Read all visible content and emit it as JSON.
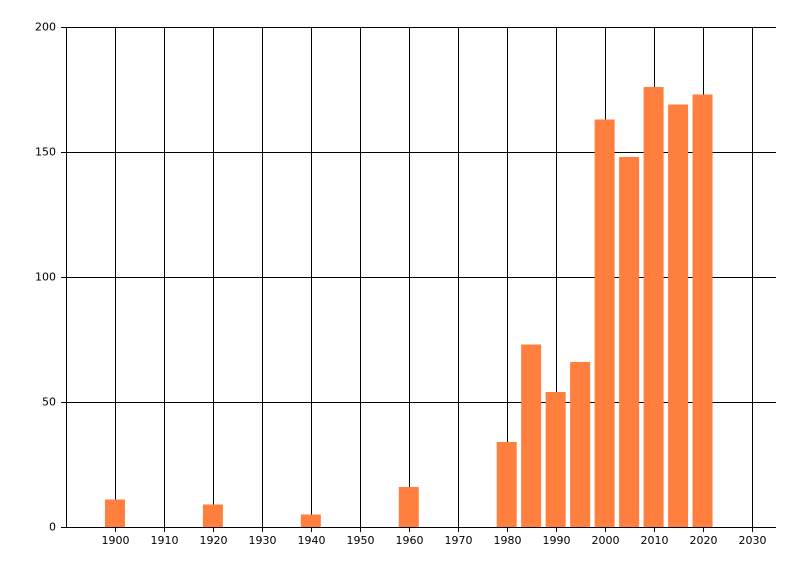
{
  "chart_data": {
    "type": "bar",
    "x": [
      1900,
      1920,
      1940,
      1960,
      1980,
      1985,
      1990,
      1995,
      2000,
      2005,
      2010,
      2015,
      2020
    ],
    "values": [
      11,
      9,
      5,
      16,
      34,
      73,
      54,
      66,
      163,
      148,
      176,
      169,
      173
    ],
    "color": "#ff7f3f",
    "xlim": [
      1890,
      2035
    ],
    "xticks": [
      1900,
      1910,
      1920,
      1930,
      1940,
      1950,
      1960,
      1970,
      1980,
      1990,
      2000,
      2010,
      2020,
      2030
    ],
    "ylim": [
      0,
      200
    ],
    "yticks": [
      0,
      50,
      100,
      150,
      200
    ],
    "grid": true
  }
}
